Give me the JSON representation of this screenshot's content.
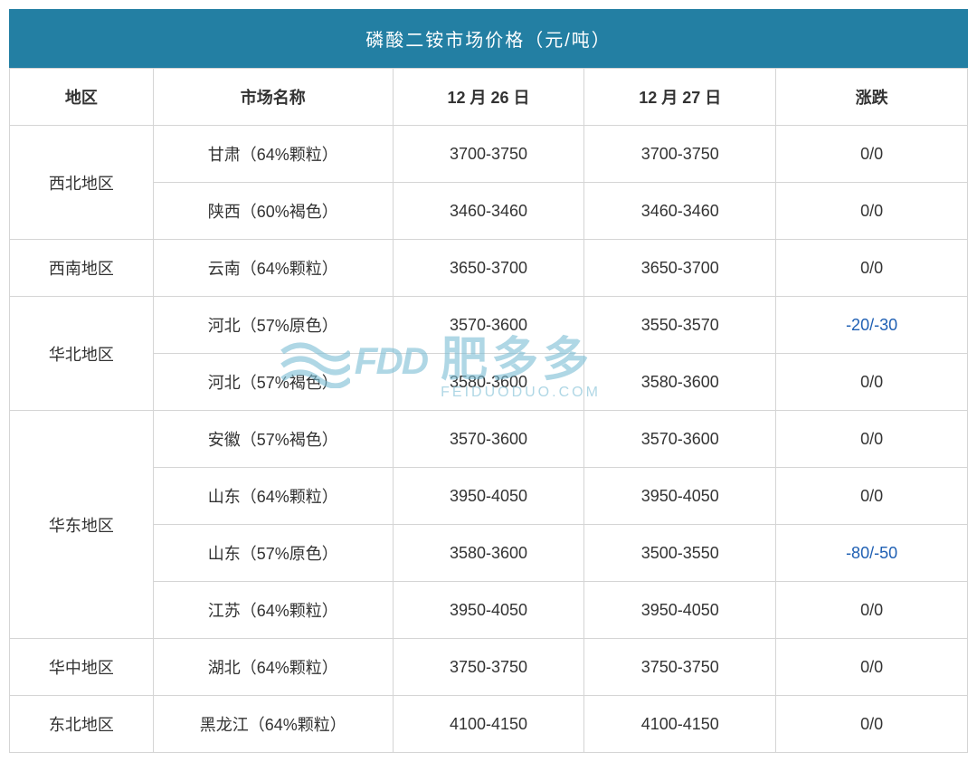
{
  "table": {
    "title": "磷酸二铵市场价格（元/吨）",
    "title_bg_color": "#237fa3",
    "title_text_color": "#ffffff",
    "border_color": "#d5d5d5",
    "text_color": "#333333",
    "negative_color": "#1e5fb3",
    "columns": [
      "地区",
      "市场名称",
      "12 月 26 日",
      "12 月 27 日",
      "涨跌"
    ],
    "column_widths": [
      "15%",
      "25%",
      "20%",
      "20%",
      "20%"
    ],
    "rows": [
      {
        "region": "西北地区",
        "rowspan": 2,
        "market": "甘肃（64%颗粒）",
        "price_26": "3700-3750",
        "price_27": "3700-3750",
        "change": "0/0",
        "is_negative": false
      },
      {
        "region": null,
        "market": "陕西（60%褐色）",
        "price_26": "3460-3460",
        "price_27": "3460-3460",
        "change": "0/0",
        "is_negative": false
      },
      {
        "region": "西南地区",
        "rowspan": 1,
        "market": "云南（64%颗粒）",
        "price_26": "3650-3700",
        "price_27": "3650-3700",
        "change": "0/0",
        "is_negative": false
      },
      {
        "region": "华北地区",
        "rowspan": 2,
        "market": "河北（57%原色）",
        "price_26": "3570-3600",
        "price_27": "3550-3570",
        "change": "-20/-30",
        "is_negative": true
      },
      {
        "region": null,
        "market": "河北（57%褐色）",
        "price_26": "3580-3600",
        "price_27": "3580-3600",
        "change": "0/0",
        "is_negative": false
      },
      {
        "region": "华东地区",
        "rowspan": 4,
        "market": "安徽（57%褐色）",
        "price_26": "3570-3600",
        "price_27": "3570-3600",
        "change": "0/0",
        "is_negative": false
      },
      {
        "region": null,
        "market": "山东（64%颗粒）",
        "price_26": "3950-4050",
        "price_27": "3950-4050",
        "change": "0/0",
        "is_negative": false
      },
      {
        "region": null,
        "market": "山东（57%原色）",
        "price_26": "3580-3600",
        "price_27": "3500-3550",
        "change": "-80/-50",
        "is_negative": true
      },
      {
        "region": null,
        "market": "江苏（64%颗粒）",
        "price_26": "3950-4050",
        "price_27": "3950-4050",
        "change": "0/0",
        "is_negative": false
      },
      {
        "region": "华中地区",
        "rowspan": 1,
        "market": "湖北（64%颗粒）",
        "price_26": "3750-3750",
        "price_27": "3750-3750",
        "change": "0/0",
        "is_negative": false
      },
      {
        "region": "东北地区",
        "rowspan": 1,
        "market": "黑龙江（64%颗粒）",
        "price_26": "4100-4150",
        "price_27": "4100-4150",
        "change": "0/0",
        "is_negative": false
      }
    ]
  },
  "watermark": {
    "fdd_text": "FDD",
    "chinese_text": "肥多多",
    "url_text": "FEIDUODUO.COM",
    "color": "#7bbdd4"
  }
}
